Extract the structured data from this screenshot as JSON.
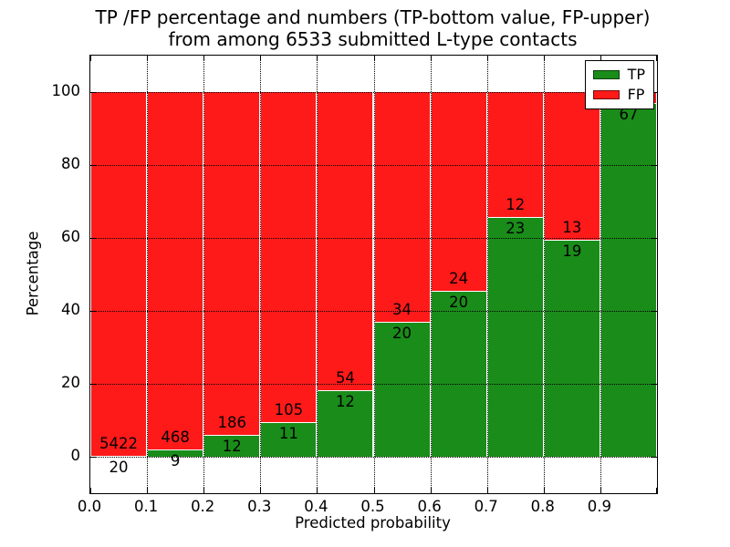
{
  "title": {
    "line1": "TP /FP percentage and numbers (TP-bottom value, FP-upper)",
    "line2": "from among 6533 submitted L-type contacts"
  },
  "chart_data": {
    "type": "bar",
    "stacked": true,
    "title": "TP /FP percentage and numbers (TP-bottom value, FP-upper) from among 6533 submitted L-type contacts",
    "xlabel": "Predicted probability",
    "ylabel": "Percentage",
    "xlim": [
      0.0,
      1.0
    ],
    "ylim": [
      -10,
      110
    ],
    "grid": "dotted",
    "x_tick_labels": [
      "0.0",
      "0.1",
      "0.2",
      "0.3",
      "0.4",
      "0.5",
      "0.6",
      "0.7",
      "0.8",
      "0.9"
    ],
    "y_ticks": [
      0,
      20,
      40,
      60,
      80,
      100
    ],
    "legend_position": "upper-right",
    "legend": [
      {
        "label": "TP",
        "color": "#1a8c1a"
      },
      {
        "label": "FP",
        "color": "#ff1a1a"
      }
    ],
    "colors": {
      "tp_green": "#1a8c1a",
      "fp_red": "#ff1a1a"
    },
    "total_contacts": 6533,
    "bins": [
      {
        "range": "0.0-0.1",
        "tp": 20,
        "fp": 5422,
        "tp_pct": 0.37,
        "fp_label_visible": true
      },
      {
        "range": "0.1-0.2",
        "tp": 9,
        "fp": 468,
        "tp_pct": 1.89,
        "fp_label_visible": true
      },
      {
        "range": "0.2-0.3",
        "tp": 12,
        "fp": 186,
        "tp_pct": 6.06,
        "fp_label_visible": true
      },
      {
        "range": "0.3-0.4",
        "tp": 11,
        "fp": 105,
        "tp_pct": 9.48,
        "fp_label_visible": true
      },
      {
        "range": "0.4-0.5",
        "tp": 12,
        "fp": 54,
        "tp_pct": 18.18,
        "fp_label_visible": true
      },
      {
        "range": "0.5-0.6",
        "tp": 20,
        "fp": 34,
        "tp_pct": 37.04,
        "fp_label_visible": true
      },
      {
        "range": "0.6-0.7",
        "tp": 20,
        "fp": 24,
        "tp_pct": 45.45,
        "fp_label_visible": true
      },
      {
        "range": "0.7-0.8",
        "tp": 23,
        "fp": 12,
        "tp_pct": 65.71,
        "fp_label_visible": true
      },
      {
        "range": "0.8-0.9",
        "tp": 19,
        "fp": 13,
        "tp_pct": 59.38,
        "fp_label_visible": true
      },
      {
        "range": "0.9-1.0",
        "tp": 67,
        "fp": 2,
        "tp_pct": 97.1,
        "fp_label_visible": false
      }
    ]
  }
}
